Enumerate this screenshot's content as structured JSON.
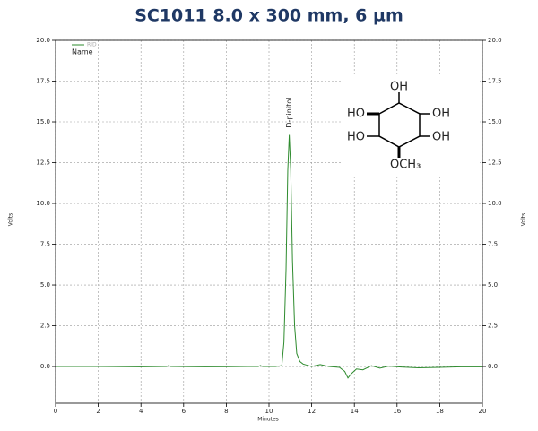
{
  "chart_data": {
    "type": "line",
    "title": "SC1011 8.0 x 300 mm, 6 µm",
    "xlabel": "Minutes",
    "ylabel": "Volts",
    "y2label": "Volts",
    "legend_title": "Name",
    "annotation": {
      "text": "D-pinitol",
      "x": 10.95,
      "y": 14.2
    },
    "structure_labels": [
      "OH",
      "HO",
      "OH",
      "HO",
      "OH",
      "OCH₃"
    ],
    "x": [
      0,
      2,
      4,
      5.2,
      5.3,
      5.4,
      7,
      9,
      9.5,
      9.6,
      9.7,
      10.3,
      10.6,
      10.7,
      10.8,
      10.88,
      10.95,
      11.02,
      11.1,
      11.2,
      11.3,
      11.45,
      11.6,
      12.0,
      12.4,
      12.8,
      13.3,
      13.55,
      13.7,
      13.85,
      14.1,
      14.4,
      14.8,
      15.2,
      15.6,
      16.2,
      17,
      18,
      19,
      20
    ],
    "series": [
      {
        "name": "RID",
        "color": "#2e8b2e",
        "values": [
          0,
          0,
          -0.02,
          0,
          0.06,
          0,
          -0.02,
          0,
          0,
          0.06,
          0,
          0,
          0.05,
          1.5,
          6,
          12,
          14.2,
          12,
          6.5,
          2.5,
          0.8,
          0.3,
          0.15,
          0,
          0.12,
          0,
          -0.05,
          -0.3,
          -0.7,
          -0.45,
          -0.15,
          -0.2,
          0.05,
          -0.1,
          0.02,
          -0.03,
          -0.08,
          -0.05,
          -0.02,
          -0.02
        ]
      }
    ],
    "xlim": [
      0,
      20
    ],
    "xticks": [
      0,
      2,
      4,
      6,
      8,
      10,
      12,
      14,
      16,
      18,
      20
    ],
    "ylim": [
      -2.25,
      20
    ],
    "yticks": [
      {
        "value": 0,
        "label": "0.0"
      },
      2.5,
      {
        "value": 5,
        "label": "5.0"
      },
      7.5,
      {
        "value": 10,
        "label": "10.0"
      },
      12.5,
      {
        "value": 15,
        "label": "15.0"
      },
      17.5,
      {
        "value": 20,
        "label": "20.0"
      }
    ],
    "y2lim": [
      -2.25,
      20
    ],
    "y2ticks": [
      {
        "value": 0,
        "label": "0.0"
      },
      2.5,
      {
        "value": 5,
        "label": "5.0"
      },
      7.5,
      {
        "value": 10,
        "label": "10.0"
      },
      12.5,
      {
        "value": 15,
        "label": "15.0"
      },
      17.5,
      {
        "value": 20,
        "label": "20.0"
      }
    ],
    "grid": true,
    "legend": "upper left"
  }
}
